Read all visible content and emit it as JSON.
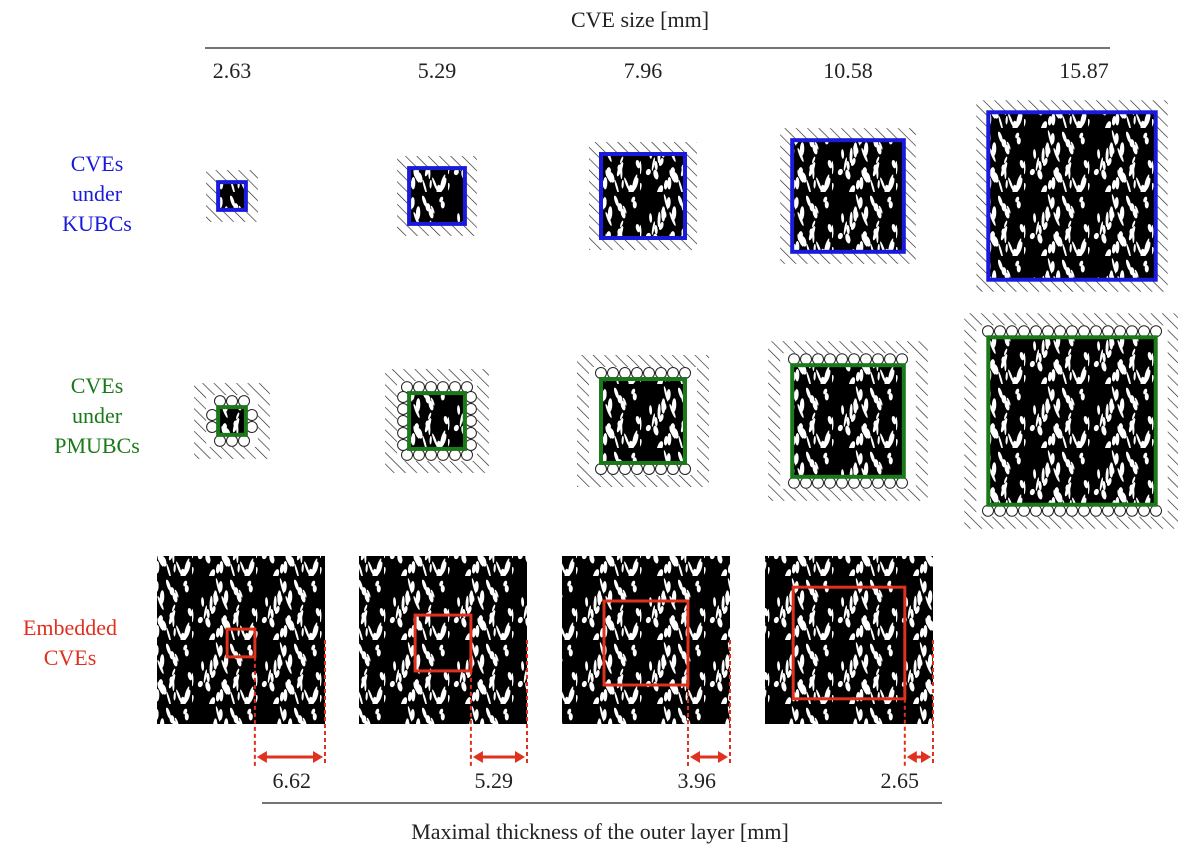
{
  "header": {
    "title": "CVE size [mm]",
    "sizes": [
      "2.63",
      "5.29",
      "7.96",
      "10.58",
      "15.87"
    ]
  },
  "rows": [
    {
      "label": [
        "CVEs",
        "under",
        "KUBCs"
      ]
    },
    {
      "label": [
        "CVEs",
        "under",
        "PMUBCs"
      ]
    },
    {
      "label": [
        "Embedded",
        "CVEs"
      ]
    }
  ],
  "footer": {
    "title": "Maximal thickness of the outer layer [mm]",
    "thicknesses": [
      "6.62",
      "5.29",
      "3.96",
      "2.65"
    ]
  }
}
